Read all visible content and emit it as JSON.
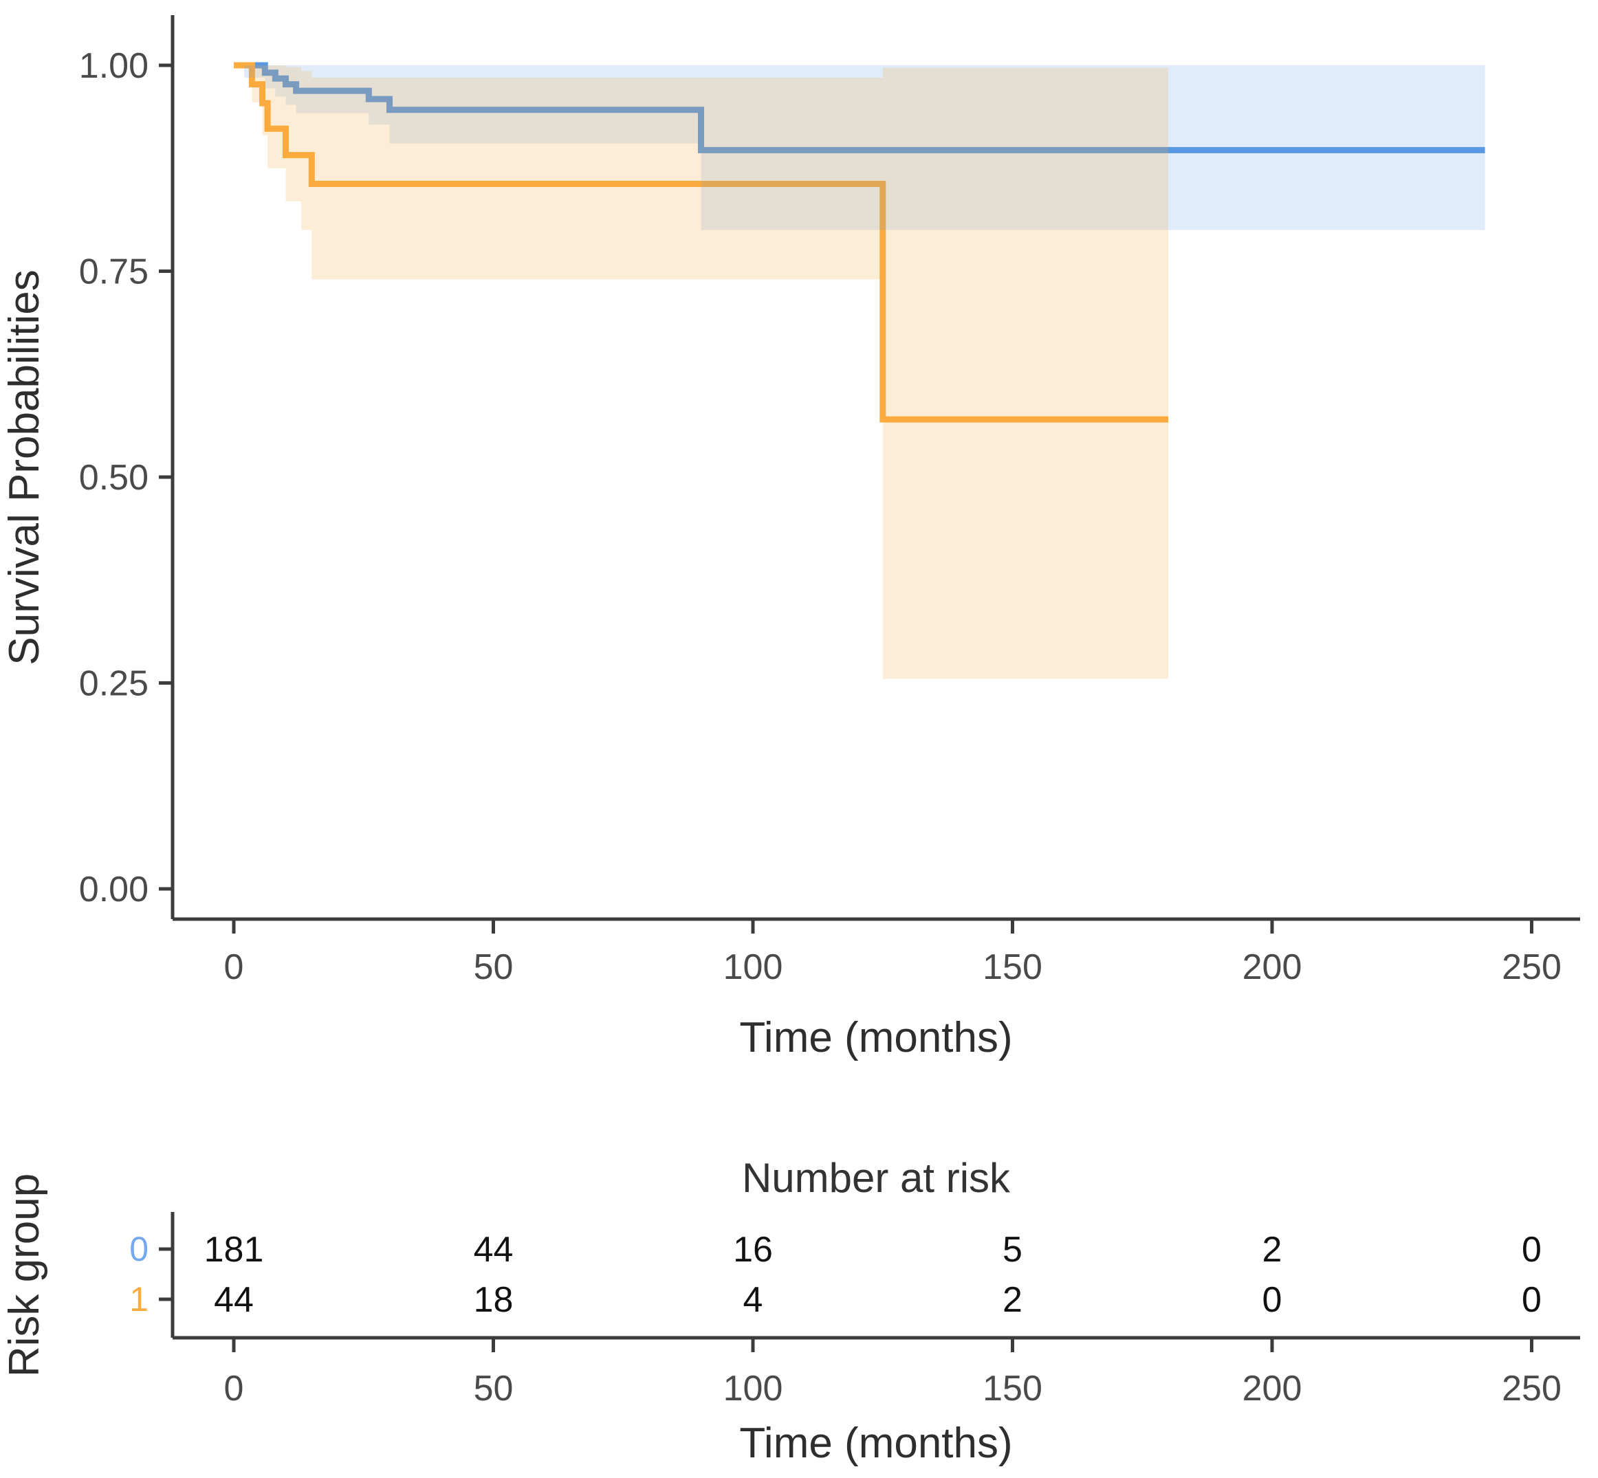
{
  "figure": {
    "main_plot": {
      "ylabel": "Survival Probabilities",
      "xlabel": "Time (months)",
      "ytick_labels": [
        "0.00",
        "0.25",
        "0.50",
        "0.75",
        "1.00"
      ],
      "xtick_labels": [
        "0",
        "50",
        "100",
        "150",
        "200",
        "250"
      ]
    },
    "risk_section": {
      "title": "Number at risk",
      "ylabel": "Risk group",
      "xlabel": "Time (months)",
      "xtick_labels": [
        "0",
        "50",
        "100",
        "150",
        "200",
        "250"
      ]
    },
    "colors": {
      "group0_line": "#5898E3",
      "group1_line": "#FBAC3F",
      "group0_band": "rgba(88,152,227,0.19)",
      "group1_band": "rgba(251,172,63,0.21)",
      "group0_label": "#74A9EE",
      "group1_label": "#FBAC3F",
      "axis": "#3C3C3C",
      "tick_text": "#4A4A4A",
      "title_text": "#2E2E2E",
      "risk_title_text": "#333333",
      "count_text": "#111111"
    }
  },
  "chart_data": {
    "type": "line",
    "subtype": "kaplan_meier_step_with_confidence_bands",
    "title": "",
    "xlabel": "Time (months)",
    "ylabel": "Survival Probabilities",
    "xlim": [
      0,
      250
    ],
    "ylim": [
      0.0,
      1.0
    ],
    "xticks": [
      0,
      50,
      100,
      150,
      200,
      250
    ],
    "yticks": [
      {
        "value": 0.0,
        "label": "0.00"
      },
      {
        "value": 0.25,
        "label": "0.25"
      },
      {
        "value": 0.5,
        "label": "0.50"
      },
      {
        "value": 0.75,
        "label": "0.75"
      },
      {
        "value": 1.0,
        "label": "1.00"
      }
    ],
    "grid": false,
    "legend_position": "none",
    "series": [
      {
        "name": "0",
        "color": "#5898E3",
        "band_color": "rgba(88,152,227,0.19)",
        "step_points": [
          [
            0,
            1.0
          ],
          [
            6,
            0.991
          ],
          [
            8,
            0.984
          ],
          [
            10,
            0.977
          ],
          [
            12,
            0.969
          ],
          [
            26,
            0.959
          ],
          [
            30,
            0.946
          ],
          [
            90,
            0.897
          ]
        ],
        "end_time": 241,
        "ci_steps": [
          [
            2,
            0.985,
            1.0
          ],
          [
            6,
            0.972,
            1.0
          ],
          [
            8,
            0.962,
            1.0
          ],
          [
            10,
            0.952,
            1.0
          ],
          [
            12,
            0.942,
            1.0
          ],
          [
            26,
            0.928,
            1.0
          ],
          [
            30,
            0.905,
            1.0
          ],
          [
            90,
            0.8,
            1.0
          ]
        ],
        "ci_end_time": 241
      },
      {
        "name": "1",
        "color": "#FBAC3F",
        "band_color": "rgba(251,172,63,0.21)",
        "step_points": [
          [
            0,
            1.0
          ],
          [
            3.5,
            0.977
          ],
          [
            5.5,
            0.954
          ],
          [
            6.5,
            0.923
          ],
          [
            10,
            0.891
          ],
          [
            15,
            0.856
          ],
          [
            125,
            0.57
          ]
        ],
        "end_time": 180,
        "ci_steps": [
          [
            3.5,
            0.955,
            1.0
          ],
          [
            5.5,
            0.915,
            1.0
          ],
          [
            6.5,
            0.875,
            1.0
          ],
          [
            10,
            0.835,
            0.998
          ],
          [
            13,
            0.8,
            0.993
          ],
          [
            15,
            0.74,
            0.985
          ],
          [
            125,
            0.255,
            0.997
          ]
        ],
        "ci_end_time": 180
      }
    ],
    "risk_table": {
      "title": "Number at risk",
      "ylabel": "Risk group",
      "xlabel": "Time (months)",
      "times": [
        0,
        50,
        100,
        150,
        200,
        250
      ],
      "rows": [
        {
          "label": "0",
          "label_color": "#74A9EE",
          "counts": [
            "181",
            "44",
            "16",
            "5",
            "2",
            "0"
          ]
        },
        {
          "label": "1",
          "label_color": "#FBAC3F",
          "counts": [
            "44",
            "18",
            "4",
            "2",
            "0",
            "0"
          ]
        }
      ]
    }
  }
}
